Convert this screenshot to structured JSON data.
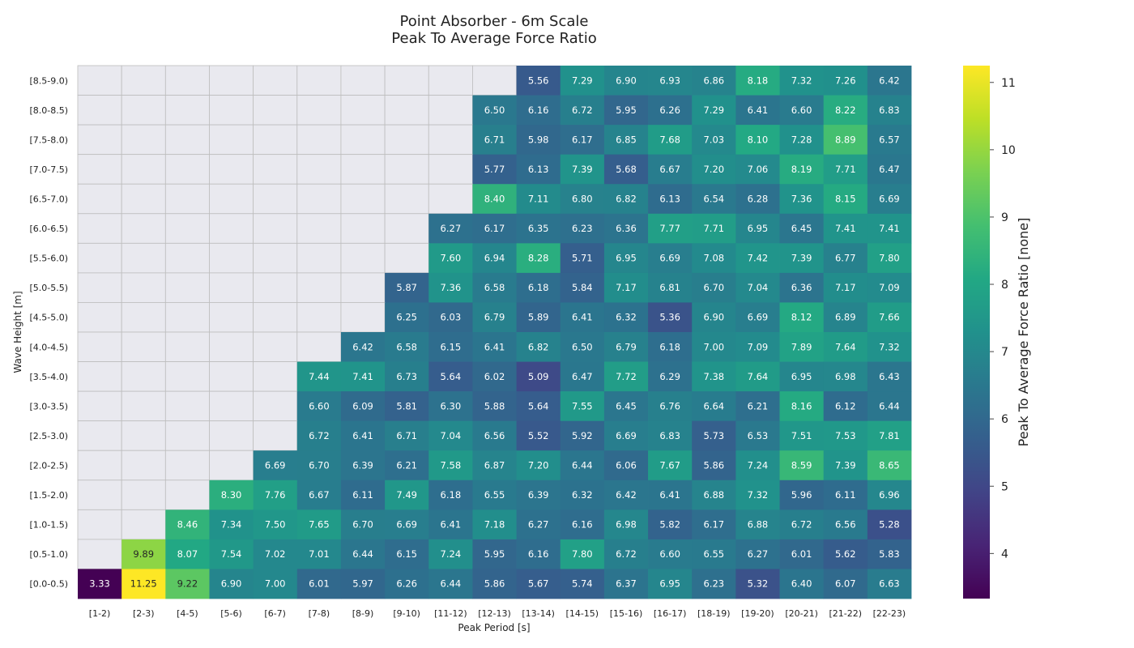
{
  "chart_data": {
    "type": "heatmap",
    "title": [
      "Point Absorber - 6m Scale",
      "Peak To Average Force Ratio"
    ],
    "xlabel": "Peak Period [s]",
    "ylabel": "Wave Height [m]",
    "colorbar_label": "Peak To Average Force Ratio [none]",
    "colormap": "viridis",
    "value_range": [
      3.33,
      11.25
    ],
    "colorbar_ticks": [
      4,
      5,
      6,
      7,
      8,
      9,
      10,
      11
    ],
    "missing_color": "#e9e9ef",
    "x_categories": [
      "[1-2)",
      "[2-3)",
      "[4-5)",
      "[5-6)",
      "[6-7)",
      "[7-8)",
      "[8-9)",
      "[9-10)",
      "[11-12)",
      "[12-13)",
      "[13-14)",
      "[14-15)",
      "[15-16)",
      "[16-17)",
      "[18-19)",
      "[19-20)",
      "[20-21)",
      "[21-22)",
      "[22-23)"
    ],
    "y_categories": [
      "[8.5-9.0)",
      "[8.0-8.5)",
      "[7.5-8.0)",
      "[7.0-7.5)",
      "[6.5-7.0)",
      "[6.0-6.5)",
      "[5.5-6.0)",
      "[5.0-5.5)",
      "[4.5-5.0)",
      "[4.0-4.5)",
      "[3.5-4.0)",
      "[3.0-3.5)",
      "[2.5-3.0)",
      "[2.0-2.5)",
      "[1.5-2.0)",
      "[1.0-1.5)",
      "[0.5-1.0)",
      "[0.0-0.5)"
    ],
    "values": [
      [
        null,
        null,
        null,
        null,
        null,
        null,
        null,
        null,
        null,
        null,
        5.56,
        7.29,
        6.9,
        6.93,
        6.86,
        8.18,
        7.32,
        7.26,
        6.42
      ],
      [
        null,
        null,
        null,
        null,
        null,
        null,
        null,
        null,
        null,
        6.5,
        6.16,
        6.72,
        5.95,
        6.26,
        7.29,
        6.41,
        6.6,
        8.22,
        6.83
      ],
      [
        null,
        null,
        null,
        null,
        null,
        null,
        null,
        null,
        null,
        6.71,
        5.98,
        6.17,
        6.85,
        7.68,
        7.03,
        8.1,
        7.28,
        8.89,
        6.57
      ],
      [
        null,
        null,
        null,
        null,
        null,
        null,
        null,
        null,
        null,
        5.77,
        6.13,
        7.39,
        5.68,
        6.67,
        7.2,
        7.06,
        8.19,
        7.71,
        6.47
      ],
      [
        null,
        null,
        null,
        null,
        null,
        null,
        null,
        null,
        null,
        8.4,
        7.11,
        6.8,
        6.82,
        6.13,
        6.54,
        6.28,
        7.36,
        8.15,
        6.69
      ],
      [
        null,
        null,
        null,
        null,
        null,
        null,
        null,
        null,
        6.27,
        6.17,
        6.35,
        6.23,
        6.36,
        7.77,
        7.71,
        6.95,
        6.45,
        7.41,
        7.41
      ],
      [
        null,
        null,
        null,
        null,
        null,
        null,
        null,
        null,
        7.6,
        6.94,
        8.28,
        5.71,
        6.95,
        6.69,
        7.08,
        7.42,
        7.39,
        6.77,
        7.8
      ],
      [
        null,
        null,
        null,
        null,
        null,
        null,
        null,
        5.87,
        7.36,
        6.58,
        6.18,
        5.84,
        7.17,
        6.81,
        6.7,
        7.04,
        6.36,
        7.17,
        7.09
      ],
      [
        null,
        null,
        null,
        null,
        null,
        null,
        null,
        6.25,
        6.03,
        6.79,
        5.89,
        6.41,
        6.32,
        5.36,
        6.9,
        6.69,
        8.12,
        6.89,
        7.66
      ],
      [
        null,
        null,
        null,
        null,
        null,
        null,
        6.42,
        6.58,
        6.15,
        6.41,
        6.82,
        6.5,
        6.79,
        6.18,
        7.0,
        7.09,
        7.89,
        7.64,
        7.32
      ],
      [
        null,
        null,
        null,
        null,
        null,
        7.44,
        7.41,
        6.73,
        5.64,
        6.02,
        5.09,
        6.47,
        7.72,
        6.29,
        7.38,
        7.64,
        6.95,
        6.98,
        6.43
      ],
      [
        null,
        null,
        null,
        null,
        null,
        6.6,
        6.09,
        5.81,
        6.3,
        5.88,
        5.64,
        7.55,
        6.45,
        6.76,
        6.64,
        6.21,
        8.16,
        6.12,
        6.44
      ],
      [
        null,
        null,
        null,
        null,
        null,
        6.72,
        6.41,
        6.71,
        7.04,
        6.56,
        5.52,
        5.92,
        6.69,
        6.83,
        5.73,
        6.53,
        7.51,
        7.53,
        7.81
      ],
      [
        null,
        null,
        null,
        null,
        6.69,
        6.7,
        6.39,
        6.21,
        7.58,
        6.87,
        7.2,
        6.44,
        6.06,
        7.67,
        5.86,
        7.24,
        8.59,
        7.39,
        8.65
      ],
      [
        null,
        null,
        null,
        8.3,
        7.76,
        6.67,
        6.11,
        7.49,
        6.18,
        6.55,
        6.39,
        6.32,
        6.42,
        6.41,
        6.88,
        7.32,
        5.96,
        6.11,
        6.96
      ],
      [
        null,
        null,
        8.46,
        7.34,
        7.5,
        7.65,
        6.7,
        6.69,
        6.41,
        7.18,
        6.27,
        6.16,
        6.98,
        5.82,
        6.17,
        6.88,
        6.72,
        6.56,
        5.28
      ],
      [
        null,
        9.89,
        8.07,
        7.54,
        7.02,
        7.01,
        6.44,
        6.15,
        7.24,
        5.95,
        6.16,
        7.8,
        6.72,
        6.6,
        6.55,
        6.27,
        6.01,
        5.62,
        5.83
      ],
      [
        3.33,
        11.25,
        9.22,
        6.9,
        7.0,
        6.01,
        5.97,
        6.26,
        6.44,
        5.86,
        5.67,
        5.74,
        6.37,
        6.95,
        6.23,
        5.32,
        6.4,
        6.07,
        6.63
      ]
    ]
  }
}
